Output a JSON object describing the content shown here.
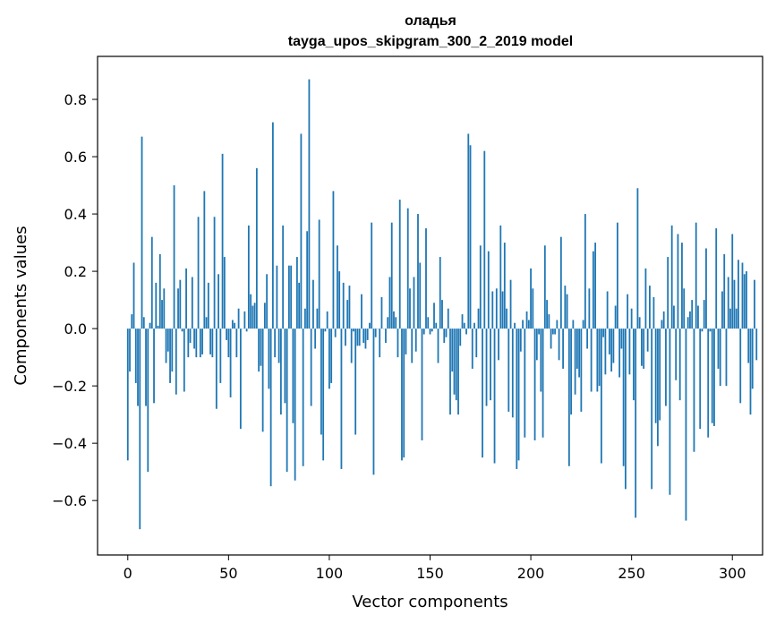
{
  "chart_data": {
    "type": "bar",
    "title": "оладья",
    "subtitle": "tayga_upos_skipgram_300_2_2019 model",
    "xlabel": "Vector components",
    "ylabel": "Components values",
    "xlim": [
      -15,
      315
    ],
    "ylim": [
      -0.79,
      0.95
    ],
    "xticks": [
      0,
      50,
      100,
      150,
      200,
      250,
      300
    ],
    "yticks": [
      -0.6,
      -0.4,
      -0.2,
      0.0,
      0.2,
      0.4,
      0.6,
      0.8
    ],
    "ytick_labels": [
      "−0.6",
      "−0.4",
      "−0.2",
      "0.0",
      "0.2",
      "0.4",
      "0.6",
      "0.8"
    ],
    "grid": false,
    "bar_color": "#1f77b4",
    "x_start": 0,
    "values": [
      -0.46,
      -0.15,
      0.05,
      0.23,
      -0.19,
      -0.27,
      -0.7,
      0.67,
      0.04,
      -0.27,
      -0.5,
      0.02,
      0.32,
      -0.26,
      0.16,
      0.01,
      0.26,
      0.1,
      0.14,
      -0.12,
      -0.08,
      -0.19,
      -0.15,
      0.5,
      -0.23,
      0.14,
      0.17,
      -0.01,
      -0.22,
      0.21,
      -0.1,
      -0.05,
      0.18,
      -0.07,
      -0.1,
      0.39,
      -0.1,
      -0.09,
      0.48,
      0.04,
      0.16,
      -0.09,
      -0.1,
      0.39,
      -0.28,
      0.19,
      -0.19,
      0.61,
      0.25,
      -0.04,
      -0.1,
      -0.24,
      0.03,
      0.02,
      -0.1,
      0.07,
      -0.35,
      0.0,
      0.06,
      -0.01,
      0.36,
      0.12,
      0.08,
      0.09,
      0.56,
      -0.15,
      -0.13,
      -0.36,
      0.09,
      0.19,
      -0.21,
      -0.55,
      0.72,
      -0.1,
      0.22,
      -0.12,
      -0.3,
      0.36,
      -0.26,
      -0.5,
      0.22,
      0.22,
      -0.33,
      -0.53,
      0.25,
      0.16,
      0.68,
      -0.48,
      0.07,
      0.34,
      0.87,
      -0.27,
      0.17,
      -0.07,
      0.07,
      0.38,
      -0.37,
      -0.46,
      -0.01,
      0.06,
      -0.21,
      -0.19,
      0.48,
      -0.03,
      0.29,
      0.2,
      -0.49,
      0.16,
      -0.06,
      0.1,
      0.15,
      -0.12,
      -0.01,
      -0.37,
      -0.06,
      -0.06,
      0.12,
      -0.05,
      -0.07,
      -0.04,
      0.02,
      0.37,
      -0.51,
      -0.03,
      0.0,
      -0.1,
      0.11,
      0.0,
      -0.05,
      0.04,
      0.18,
      0.37,
      0.06,
      0.04,
      -0.1,
      0.45,
      -0.46,
      -0.45,
      -0.09,
      0.42,
      0.14,
      -0.12,
      0.18,
      -0.08,
      0.4,
      0.23,
      -0.39,
      -0.02,
      0.35,
      0.04,
      -0.02,
      -0.01,
      0.09,
      0.02,
      -0.12,
      0.25,
      0.1,
      -0.05,
      -0.03,
      0.07,
      -0.3,
      -0.15,
      -0.23,
      -0.25,
      -0.3,
      -0.06,
      0.05,
      0.02,
      -0.02,
      0.68,
      0.64,
      -0.14,
      0.02,
      -0.1,
      0.07,
      0.29,
      -0.45,
      0.62,
      -0.27,
      0.27,
      -0.25,
      0.13,
      -0.47,
      0.14,
      -0.11,
      0.36,
      0.13,
      0.3,
      0.07,
      -0.29,
      0.17,
      -0.31,
      0.02,
      -0.49,
      -0.46,
      -0.08,
      0.03,
      -0.38,
      0.06,
      0.03,
      0.21,
      0.14,
      -0.39,
      -0.11,
      -0.02,
      -0.22,
      -0.38,
      0.29,
      0.1,
      0.05,
      -0.07,
      -0.02,
      -0.02,
      0.03,
      -0.11,
      0.32,
      -0.14,
      0.15,
      0.12,
      -0.48,
      -0.3,
      0.03,
      -0.23,
      -0.14,
      -0.17,
      -0.29,
      0.03,
      0.4,
      -0.07,
      0.14,
      -0.22,
      0.27,
      0.3,
      -0.22,
      -0.2,
      -0.47,
      -0.03,
      -0.16,
      0.13,
      -0.09,
      -0.15,
      -0.12,
      0.08,
      0.37,
      -0.17,
      -0.07,
      -0.48,
      -0.56,
      0.12,
      -0.16,
      0.07,
      -0.25,
      -0.66,
      0.49,
      0.04,
      -0.13,
      -0.14,
      0.21,
      -0.08,
      0.15,
      -0.56,
      0.11,
      -0.33,
      -0.41,
      -0.32,
      0.03,
      0.06,
      -0.27,
      0.25,
      -0.58,
      0.36,
      0.08,
      -0.18,
      0.33,
      -0.25,
      0.3,
      0.14,
      -0.67,
      0.04,
      0.06,
      0.1,
      -0.43,
      0.37,
      0.08,
      -0.35,
      -0.01,
      0.1,
      0.28,
      -0.38,
      -0.01,
      -0.33,
      -0.34,
      0.35,
      -0.14,
      -0.2,
      0.13,
      0.26,
      -0.2,
      0.18,
      0.07,
      0.33,
      0.17,
      0.07,
      0.24,
      -0.26,
      0.23,
      0.19,
      0.2,
      -0.12,
      -0.3,
      -0.21,
      0.17,
      -0.11
    ]
  }
}
